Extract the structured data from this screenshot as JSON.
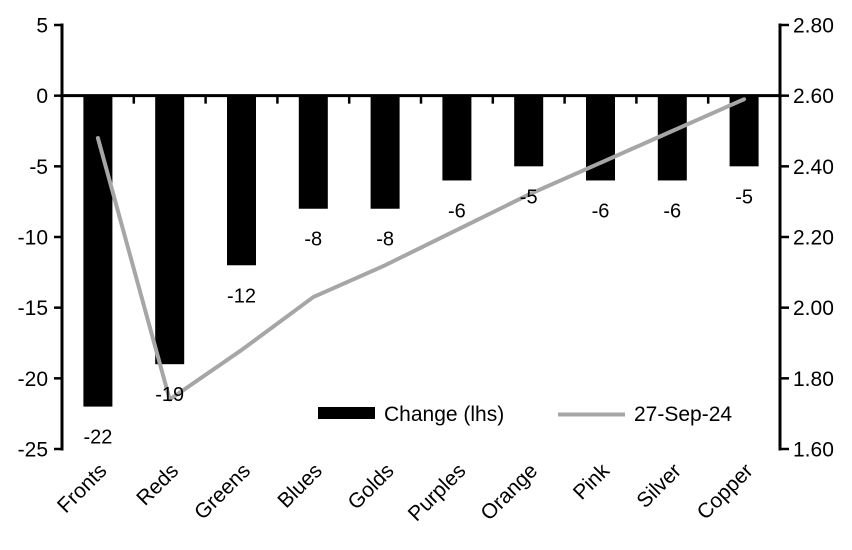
{
  "chart_data": {
    "type": "combo",
    "title": "",
    "categories": [
      "Fronts",
      "Reds",
      "Greens",
      "Blues",
      "Golds",
      "Purples",
      "Orange",
      "Pink",
      "Silver",
      "Copper"
    ],
    "series": [
      {
        "name": "Change (lhs)",
        "type": "bar",
        "axis": "left",
        "color": "#000000",
        "values": [
          -22,
          -19,
          -12,
          -8,
          -8,
          -6,
          -5,
          -6,
          -6,
          -5
        ],
        "data_labels": [
          "-22",
          "-19",
          "-12",
          "-8",
          "-8",
          "-6",
          "-5",
          "-6",
          "-6",
          "-5"
        ]
      },
      {
        "name": "27-Sep-24",
        "type": "line",
        "axis": "right",
        "color": "#A6A6A6",
        "values": [
          2.48,
          1.74,
          1.88,
          2.03,
          2.12,
          2.22,
          2.32,
          2.41,
          2.5,
          2.59
        ]
      }
    ],
    "left_axis": {
      "min": -25,
      "max": 5,
      "step": 5,
      "tick_values": [
        5,
        0,
        -5,
        -10,
        -15,
        -20,
        -25
      ],
      "tick_labels": [
        "5",
        "0",
        "-5",
        "-10",
        "-15",
        "-20",
        "-25"
      ]
    },
    "right_axis": {
      "min": 1.6,
      "max": 2.8,
      "step": 0.2,
      "tick_values": [
        2.8,
        2.6,
        2.4,
        2.2,
        2.0,
        1.8,
        1.6
      ],
      "tick_labels": [
        "2.80",
        "2.60",
        "2.40",
        "2.20",
        "2.00",
        "1.80",
        "1.60"
      ]
    },
    "legend": {
      "position": "bottom-inside",
      "entries": [
        {
          "label": "Change (lhs)",
          "swatch": "bar",
          "color": "#000000"
        },
        {
          "label": "27-Sep-24",
          "swatch": "line",
          "color": "#A6A6A6"
        }
      ]
    },
    "grid": false,
    "axis_color": "#000000",
    "background": "#FFFFFF"
  }
}
